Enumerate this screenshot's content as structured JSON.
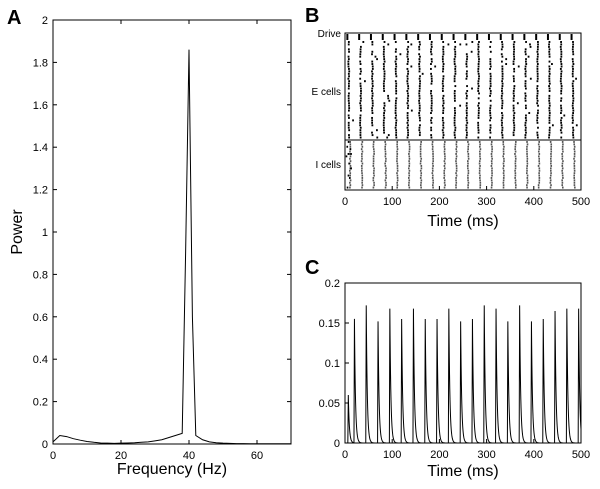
{
  "panel_letters": {
    "a": "A",
    "b": "B",
    "c": "C"
  },
  "chart_data": [
    {
      "panel": "A",
      "type": "line",
      "xlabel": "Frequency (Hz)",
      "ylabel": "Power",
      "xlim": [
        0,
        70
      ],
      "ylim": [
        0,
        2
      ],
      "xticks": [
        0,
        20,
        40,
        60
      ],
      "yticks": [
        0,
        0.2,
        0.4,
        0.6,
        0.8,
        1,
        1.2,
        1.4,
        1.6,
        1.8,
        2
      ],
      "x": [
        0,
        2,
        4,
        6,
        8,
        10,
        12,
        14,
        16,
        18,
        20,
        22,
        24,
        26,
        28,
        30,
        32,
        34,
        36,
        38,
        39,
        40,
        41,
        42,
        44,
        46,
        48,
        50,
        52,
        54,
        56,
        58,
        60,
        62,
        64,
        66,
        68,
        70
      ],
      "y": [
        0.01,
        0.04,
        0.035,
        0.025,
        0.018,
        0.012,
        0.008,
        0.005,
        0.004,
        0.003,
        0.004,
        0.005,
        0.006,
        0.008,
        0.01,
        0.015,
        0.02,
        0.03,
        0.04,
        0.05,
        0.9,
        1.86,
        0.6,
        0.04,
        0.02,
        0.01,
        0.006,
        0.004,
        0.003,
        0.002,
        0.002,
        0.001,
        0.001,
        0.001,
        0.001,
        0.001,
        0.001,
        0.001
      ],
      "grid": false
    },
    {
      "panel": "B",
      "type": "raster",
      "xlabel": "Time (ms)",
      "xlim": [
        0,
        500
      ],
      "xticks": [
        0,
        100,
        200,
        300,
        400,
        500
      ],
      "row_labels": [
        "Drive",
        "E cells",
        "I cells"
      ],
      "drive_period_ms": 25,
      "e_cells": 40,
      "i_cells": 20
    },
    {
      "panel": "C",
      "type": "line",
      "xlabel": "Time (ms)",
      "xlim": [
        0,
        500
      ],
      "ylim": [
        0,
        0.2
      ],
      "xticks": [
        0,
        100,
        200,
        300,
        400,
        500
      ],
      "yticks": [
        0,
        0.05,
        0.1,
        0.15,
        0.2
      ],
      "peak_times_ms": [
        7,
        20,
        45,
        70,
        95,
        120,
        145,
        170,
        195,
        220,
        245,
        270,
        295,
        320,
        345,
        370,
        395,
        420,
        445,
        470,
        495
      ],
      "peak_values": [
        0.06,
        0.155,
        0.172,
        0.152,
        0.168,
        0.155,
        0.168,
        0.155,
        0.155,
        0.168,
        0.152,
        0.155,
        0.172,
        0.168,
        0.152,
        0.172,
        0.152,
        0.155,
        0.165,
        0.168,
        0.168
      ],
      "grid": false
    }
  ]
}
